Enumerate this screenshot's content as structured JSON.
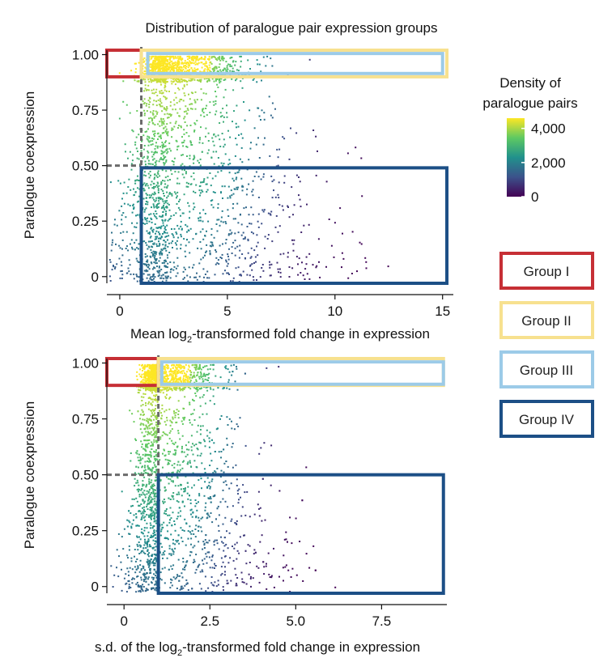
{
  "chart_data": [
    {
      "type": "scatter",
      "title": "Distribution of paralogue pair expression groups",
      "xlabel": "Mean log2-transformed fold change in expression",
      "ylabel": "Paralogue coexpression",
      "xlim": [
        -0.6,
        15.5
      ],
      "ylim": [
        -0.03,
        1.02
      ],
      "x_ticks": [
        0,
        5,
        10,
        15
      ],
      "x_tick_labels": [
        "0",
        "5",
        "10",
        "15"
      ],
      "y_ticks": [
        0,
        0.25,
        0.5,
        0.75,
        1.0
      ],
      "y_tick_labels": [
        "0",
        "0.25",
        "0.50",
        "0.75",
        "1.00"
      ],
      "thresholds": {
        "x": 1,
        "y_upper": 0.9,
        "y_lower": 0.5
      },
      "regions": [
        {
          "group": "Group I",
          "x": [
            -0.6,
            1
          ],
          "y": [
            0.9,
            1.02
          ]
        },
        {
          "group": "Group II",
          "x": [
            1,
            15.2
          ],
          "y": [
            0.9,
            1.02
          ]
        },
        {
          "group": "Group III",
          "x": [
            1.3,
            15.0
          ],
          "y": [
            0.915,
            1.005
          ]
        },
        {
          "group": "Group IV",
          "x": [
            1,
            15.2
          ],
          "y": [
            -0.03,
            0.49
          ]
        }
      ]
    },
    {
      "type": "scatter",
      "xlabel": "s.d. of the log2-transformed fold change in expression",
      "ylabel": "Paralogue coexpression",
      "xlim": [
        -0.5,
        9.4
      ],
      "ylim": [
        -0.03,
        1.02
      ],
      "x_ticks": [
        0,
        2.5,
        5.0,
        7.5
      ],
      "x_tick_labels": [
        "0",
        "2.5",
        "5.0",
        "7.5"
      ],
      "y_ticks": [
        0,
        0.25,
        0.5,
        0.75,
        1.0
      ],
      "y_tick_labels": [
        "0",
        "0.25",
        "0.50",
        "0.75",
        "1.00"
      ],
      "thresholds": {
        "x": 1,
        "y_upper": 0.9,
        "y_lower": 0.5
      },
      "regions": [
        {
          "group": "Group I",
          "x": [
            -0.5,
            1
          ],
          "y": [
            0.9,
            1.02
          ]
        },
        {
          "group": "Group II",
          "x": [
            1,
            9.3
          ],
          "y": [
            0.9,
            1.02
          ]
        },
        {
          "group": "Group III",
          "x": [
            1.1,
            9.3
          ],
          "y": [
            0.905,
            1.005
          ]
        },
        {
          "group": "Group IV",
          "x": [
            1,
            9.3
          ],
          "y": [
            -0.03,
            0.5
          ]
        }
      ]
    }
  ],
  "density_legend": {
    "title_line1": "Density of",
    "title_line2": "paralogue pairs",
    "ticks": [
      {
        "value": 4000,
        "label": "4,000"
      },
      {
        "value": 2000,
        "label": "2,000"
      },
      {
        "value": 0,
        "label": "0"
      }
    ],
    "range": [
      0,
      4600
    ],
    "colormap": [
      "#440154",
      "#3b528b",
      "#21918c",
      "#5ec962",
      "#fde725"
    ]
  },
  "group_legend": [
    {
      "label": "Group I",
      "color": "#c62f35"
    },
    {
      "label": "Group II",
      "color": "#f7e18f"
    },
    {
      "label": "Group III",
      "color": "#9ccbe8"
    },
    {
      "label": "Group IV",
      "color": "#1c4f86"
    }
  ],
  "colors": {
    "threshold_line": "#6b6b6b",
    "axis": "#111111"
  }
}
